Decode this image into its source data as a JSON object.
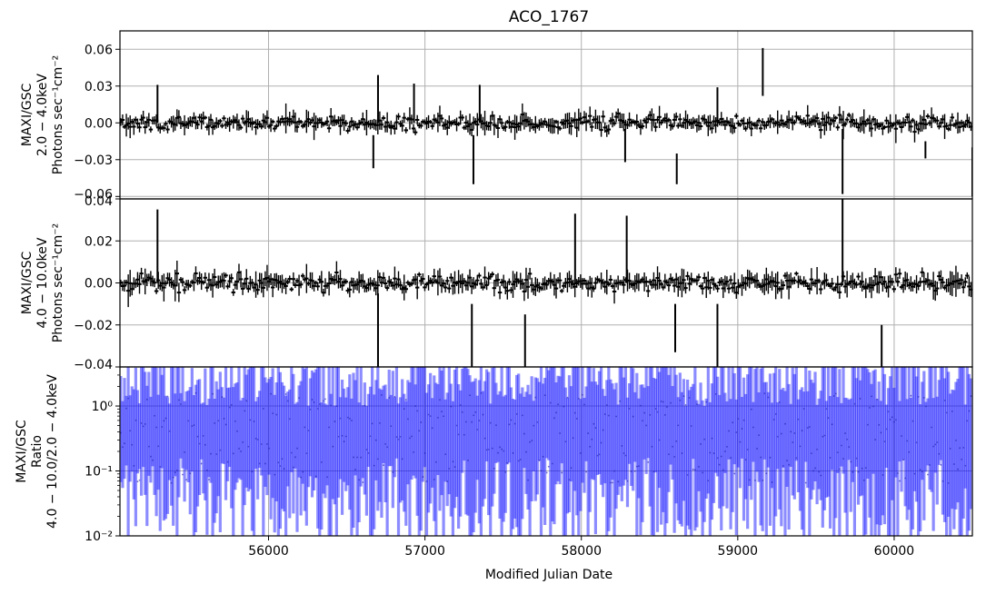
{
  "chart_data": {
    "type": "errorbar",
    "title": "ACO_1767",
    "xlabel": "Modified Julian Date",
    "xlim": [
      55050,
      60500
    ],
    "x_ticks": [
      56000,
      57000,
      58000,
      59000,
      60000
    ],
    "grid": true,
    "panels": [
      {
        "ylabel_lines": [
          "MAXI/GSC",
          "2.0 − 4.0keV",
          "Photons sec⁻¹cm⁻²"
        ],
        "scale": "linear",
        "ylim": [
          -0.062,
          0.075
        ],
        "y_ticks": [
          -0.06,
          -0.03,
          0.0,
          0.03,
          0.06
        ],
        "y_tick_labels": [
          "−0.06",
          "−0.03",
          "0.00",
          "0.03",
          "0.06"
        ],
        "color": "#000000",
        "noise_sigma": 0.0025,
        "err_sigma": 0.006,
        "spikes": [
          {
            "x": 55290,
            "y0": 0.0,
            "y1": 0.031
          },
          {
            "x": 56670,
            "y0": -0.037,
            "y1": -0.01
          },
          {
            "x": 56700,
            "y0": 0.0,
            "y1": 0.039
          },
          {
            "x": 56930,
            "y0": 0.0,
            "y1": 0.032
          },
          {
            "x": 57310,
            "y0": -0.05,
            "y1": -0.01
          },
          {
            "x": 57350,
            "y0": 0.0,
            "y1": 0.031
          },
          {
            "x": 58280,
            "y0": -0.032,
            "y1": -0.005
          },
          {
            "x": 58610,
            "y0": -0.05,
            "y1": -0.025
          },
          {
            "x": 58870,
            "y0": 0.0,
            "y1": 0.029
          },
          {
            "x": 59160,
            "y0": 0.022,
            "y1": 0.061
          },
          {
            "x": 59670,
            "y0": -0.058,
            "y1": -0.005
          },
          {
            "x": 60200,
            "y0": -0.029,
            "y1": -0.015
          },
          {
            "x": 60500,
            "y0": -0.06,
            "y1": -0.02
          }
        ]
      },
      {
        "ylabel_lines": [
          "MAXI/GSC",
          "4.0 − 10.0keV",
          "Photons sec⁻¹cm⁻²"
        ],
        "scale": "linear",
        "ylim": [
          -0.04,
          0.04
        ],
        "y_ticks": [
          -0.04,
          -0.02,
          0.0,
          0.02,
          0.04
        ],
        "y_tick_labels": [
          "−0.04",
          "−0.02",
          "0.00",
          "0.02",
          "0.04"
        ],
        "color": "#000000",
        "noise_sigma": 0.0018,
        "err_sigma": 0.004,
        "spikes": [
          {
            "x": 55290,
            "y0": 0.0,
            "y1": 0.035
          },
          {
            "x": 56700,
            "y0": -0.04,
            "y1": -0.005
          },
          {
            "x": 57300,
            "y0": -0.04,
            "y1": -0.01
          },
          {
            "x": 57640,
            "y0": -0.04,
            "y1": -0.015
          },
          {
            "x": 57960,
            "y0": 0.0,
            "y1": 0.033
          },
          {
            "x": 58290,
            "y0": 0.0,
            "y1": 0.032
          },
          {
            "x": 58600,
            "y0": -0.033,
            "y1": -0.01
          },
          {
            "x": 58870,
            "y0": -0.04,
            "y1": -0.01
          },
          {
            "x": 59670,
            "y0": 0.0,
            "y1": 0.04
          },
          {
            "x": 59920,
            "y0": -0.04,
            "y1": -0.02
          }
        ]
      },
      {
        "ylabel_lines": [
          "MAXI/GSC",
          "Ratio",
          "4.0 − 10.0/2.0 − 4.0keV"
        ],
        "scale": "log",
        "ylim": [
          0.01,
          4.0
        ],
        "y_ticks": [
          0.01,
          0.1,
          1.0
        ],
        "y_tick_labels": [
          "10⁻²",
          "10⁻¹",
          "10⁰"
        ],
        "color": "#0000ff",
        "bar_opacity": 0.45
      }
    ]
  }
}
